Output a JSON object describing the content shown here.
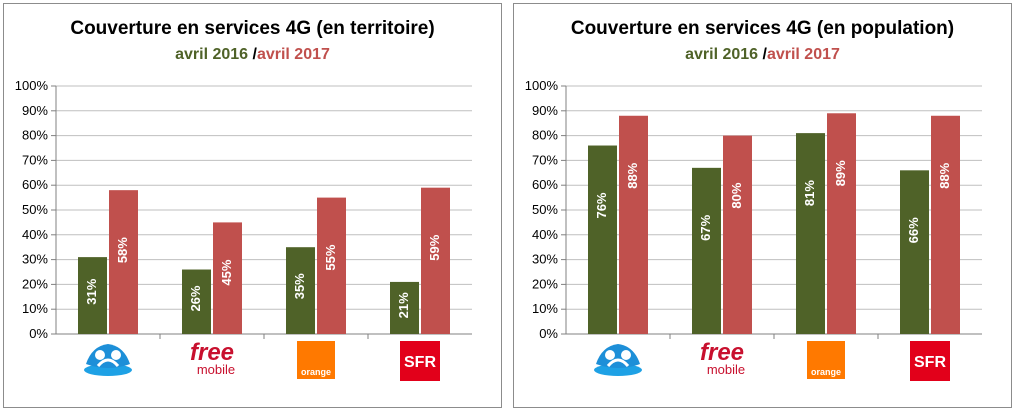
{
  "colors": {
    "y2016": "#4f6228",
    "y2017": "#c0504d"
  },
  "legend": {
    "y2016": "avril 2016",
    "sep": " /",
    "y2017": "avril 2017"
  },
  "operators": [
    {
      "name": "bouygues",
      "icon": "bouygues-logo"
    },
    {
      "name": "free",
      "icon": "free-mobile-logo",
      "text_top": "free",
      "text_bottom": "mobile"
    },
    {
      "name": "orange",
      "icon": "orange-logo",
      "text": "orange"
    },
    {
      "name": "sfr",
      "icon": "sfr-logo",
      "text": "SFR"
    }
  ],
  "chart_data": [
    {
      "type": "bar",
      "title": "Couverture en services 4G (en territoire)",
      "categories": [
        "Bouygues",
        "Free",
        "Orange",
        "SFR"
      ],
      "ylim": [
        0,
        100
      ],
      "yticks": [
        "0%",
        "10%",
        "20%",
        "30%",
        "40%",
        "50%",
        "60%",
        "70%",
        "80%",
        "90%",
        "100%"
      ],
      "grid": true,
      "series": [
        {
          "name": "avril 2016",
          "values": [
            31,
            26,
            35,
            21
          ],
          "labels": [
            "31%",
            "26%",
            "35%",
            "21%"
          ]
        },
        {
          "name": "avril 2017",
          "values": [
            58,
            45,
            55,
            59
          ],
          "labels": [
            "58%",
            "45%",
            "55%",
            "59%"
          ]
        }
      ]
    },
    {
      "type": "bar",
      "title": "Couverture en services 4G (en population)",
      "categories": [
        "Bouygues",
        "Free",
        "Orange",
        "SFR"
      ],
      "ylim": [
        0,
        100
      ],
      "yticks": [
        "0%",
        "10%",
        "20%",
        "30%",
        "40%",
        "50%",
        "60%",
        "70%",
        "80%",
        "90%",
        "100%"
      ],
      "grid": true,
      "series": [
        {
          "name": "avril 2016",
          "values": [
            76,
            67,
            81,
            66
          ],
          "labels": [
            "76%",
            "67%",
            "81%",
            "66%"
          ]
        },
        {
          "name": "avril 2017",
          "values": [
            88,
            80,
            89,
            88
          ],
          "labels": [
            "88%",
            "80%",
            "89%",
            "88%"
          ]
        }
      ]
    }
  ]
}
